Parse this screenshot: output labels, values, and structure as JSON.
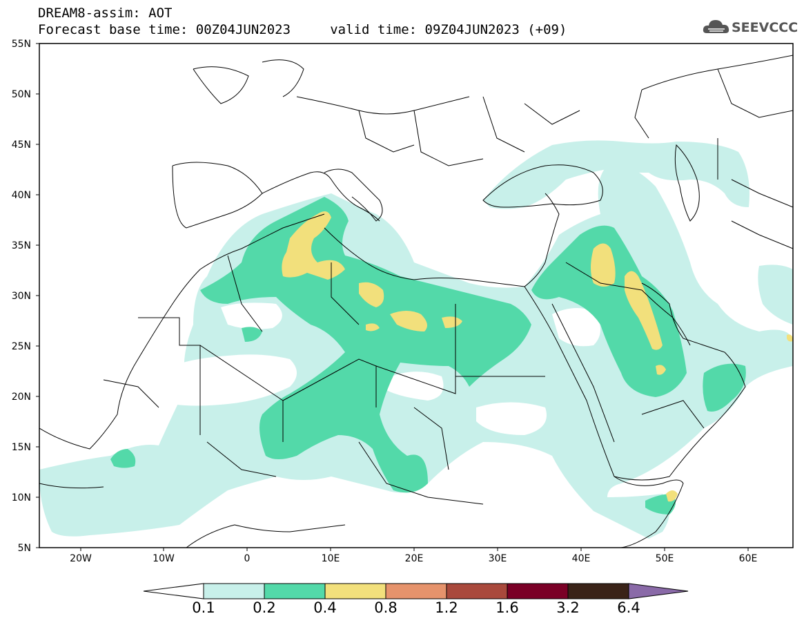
{
  "title_line1": "DREAM8-assim: AOT",
  "title_line2": "Forecast base time: 00Z04JUN2023     valid time: 09Z04JUN2023 (+09)",
  "logo_text": "SEEVCCC",
  "lat_labels": [
    "55N",
    "50N",
    "45N",
    "40N",
    "35N",
    "30N",
    "25N",
    "20N",
    "15N",
    "10N",
    "5N"
  ],
  "lon_labels": [
    "20W",
    "10W",
    "0",
    "10E",
    "20E",
    "30E",
    "40E",
    "50E",
    "60E"
  ],
  "colorbar": {
    "labels": [
      "0.1",
      "0.2",
      "0.4",
      "0.8",
      "1.2",
      "1.6",
      "3.2",
      "6.4"
    ],
    "colors": [
      "#ffffff",
      "#c8f0ea",
      "#53d9a9",
      "#f2e07c",
      "#e6936c",
      "#a9493c",
      "#7a0026",
      "#3a2318",
      "#8a6aa8"
    ]
  }
}
